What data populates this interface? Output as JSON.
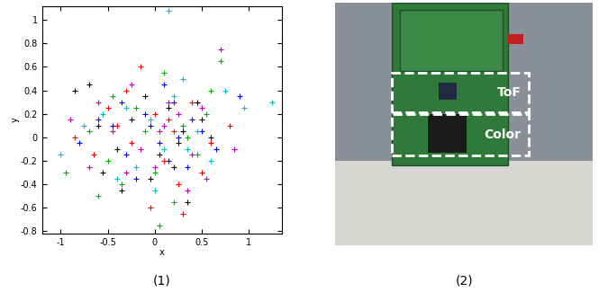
{
  "chart_data": {
    "type": "scatter",
    "x_label": "x",
    "y_label": "y",
    "marker": "+",
    "grid": false,
    "xlim": [
      -1.2,
      1.35
    ],
    "xticks": [
      -1,
      -0.5,
      0,
      0.5,
      1
    ],
    "ylim": [
      -0.82,
      1.12
    ],
    "yticks": [
      -0.8,
      -0.6,
      -0.4,
      -0.2,
      0,
      0.2,
      0.4,
      0.6,
      0.8,
      1
    ],
    "series": [
      {
        "color": "#0000ff",
        "x": [
          -0.45,
          -0.3,
          -0.1,
          0.05,
          0.2,
          0.35,
          0.5,
          -0.6,
          0.1,
          -0.2,
          0.4,
          0.65,
          -0.8,
          0.25,
          -0.05,
          0.15,
          0.9,
          -0.35
        ],
        "values": [
          0.1,
          -0.15,
          0.2,
          -0.05,
          0.3,
          -0.25,
          0.05,
          0.15,
          0.45,
          -0.35,
          0.15,
          -0.1,
          -0.05,
          0.0,
          0.1,
          -0.2,
          0.35,
          0.3
        ]
      },
      {
        "color": "#00b000",
        "x": [
          -0.5,
          -0.2,
          0.0,
          0.3,
          0.55,
          -0.7,
          0.1,
          -0.35,
          0.45,
          0.2,
          -0.1,
          0.7,
          -0.95,
          0.6,
          0.05,
          -0.45,
          0.35,
          -0.6
        ],
        "values": [
          -0.2,
          0.25,
          -0.3,
          0.1,
          0.2,
          0.05,
          0.55,
          -0.4,
          -0.15,
          -0.55,
          0.05,
          0.65,
          -0.3,
          0.4,
          -0.75,
          0.35,
          0.0,
          -0.5
        ]
      },
      {
        "color": "#ff0000",
        "x": [
          -0.15,
          0.25,
          -0.4,
          0.5,
          -0.05,
          0.15,
          -0.65,
          0.4,
          -0.25,
          0.8,
          0.0,
          0.3,
          -0.5,
          0.1,
          -0.3,
          0.6,
          -0.85,
          0.2
        ],
        "values": [
          0.6,
          -0.4,
          0.1,
          -0.3,
          -0.6,
          0.15,
          -0.15,
          0.3,
          -0.05,
          0.1,
          0.2,
          -0.65,
          0.25,
          -0.2,
          0.4,
          -0.05,
          0.0,
          0.05
        ]
      },
      {
        "color": "#00bfbf",
        "x": [
          0.3,
          -0.55,
          0.1,
          0.45,
          -0.2,
          0.95,
          -0.4,
          0.2,
          -0.05,
          0.6,
          1.25,
          -0.75,
          0.0,
          0.35,
          -0.3,
          0.75,
          -1.0,
          0.15
        ],
        "values": [
          0.5,
          0.2,
          -0.1,
          0.05,
          -0.25,
          0.25,
          -0.35,
          0.35,
          0.15,
          -0.2,
          0.3,
          0.1,
          -0.45,
          -0.1,
          0.25,
          0.4,
          -0.15,
          1.08
        ]
      },
      {
        "color": "#bf00bf",
        "x": [
          -0.3,
          0.15,
          0.4,
          -0.6,
          0.05,
          0.7,
          -0.15,
          0.55,
          -0.45,
          0.25,
          -0.9,
          0.0,
          0.85,
          -0.25,
          0.35,
          -0.7,
          0.1,
          0.5
        ],
        "values": [
          -0.3,
          0.3,
          -0.15,
          0.3,
          0.05,
          0.75,
          -0.1,
          -0.35,
          0.05,
          0.2,
          0.15,
          -0.25,
          -0.1,
          0.45,
          -0.45,
          -0.25,
          0.1,
          0.25
        ]
      },
      {
        "color": "#000000",
        "x": [
          -0.7,
          -0.4,
          -0.1,
          0.2,
          0.45,
          -0.55,
          0.05,
          0.3,
          -0.25,
          0.6,
          -0.85,
          0.15,
          -0.35,
          0.35,
          -0.05,
          0.5,
          -0.6,
          0.25
        ],
        "values": [
          0.45,
          -0.1,
          0.35,
          -0.25,
          0.3,
          -0.3,
          -0.15,
          0.05,
          0.15,
          0.0,
          0.4,
          0.25,
          -0.45,
          -0.55,
          -0.35,
          0.15,
          0.1,
          -0.05
        ]
      }
    ]
  },
  "panel_labels": [
    "(1)",
    "(2)"
  ],
  "photo": {
    "boxes": [
      "ToF",
      "Color"
    ]
  }
}
